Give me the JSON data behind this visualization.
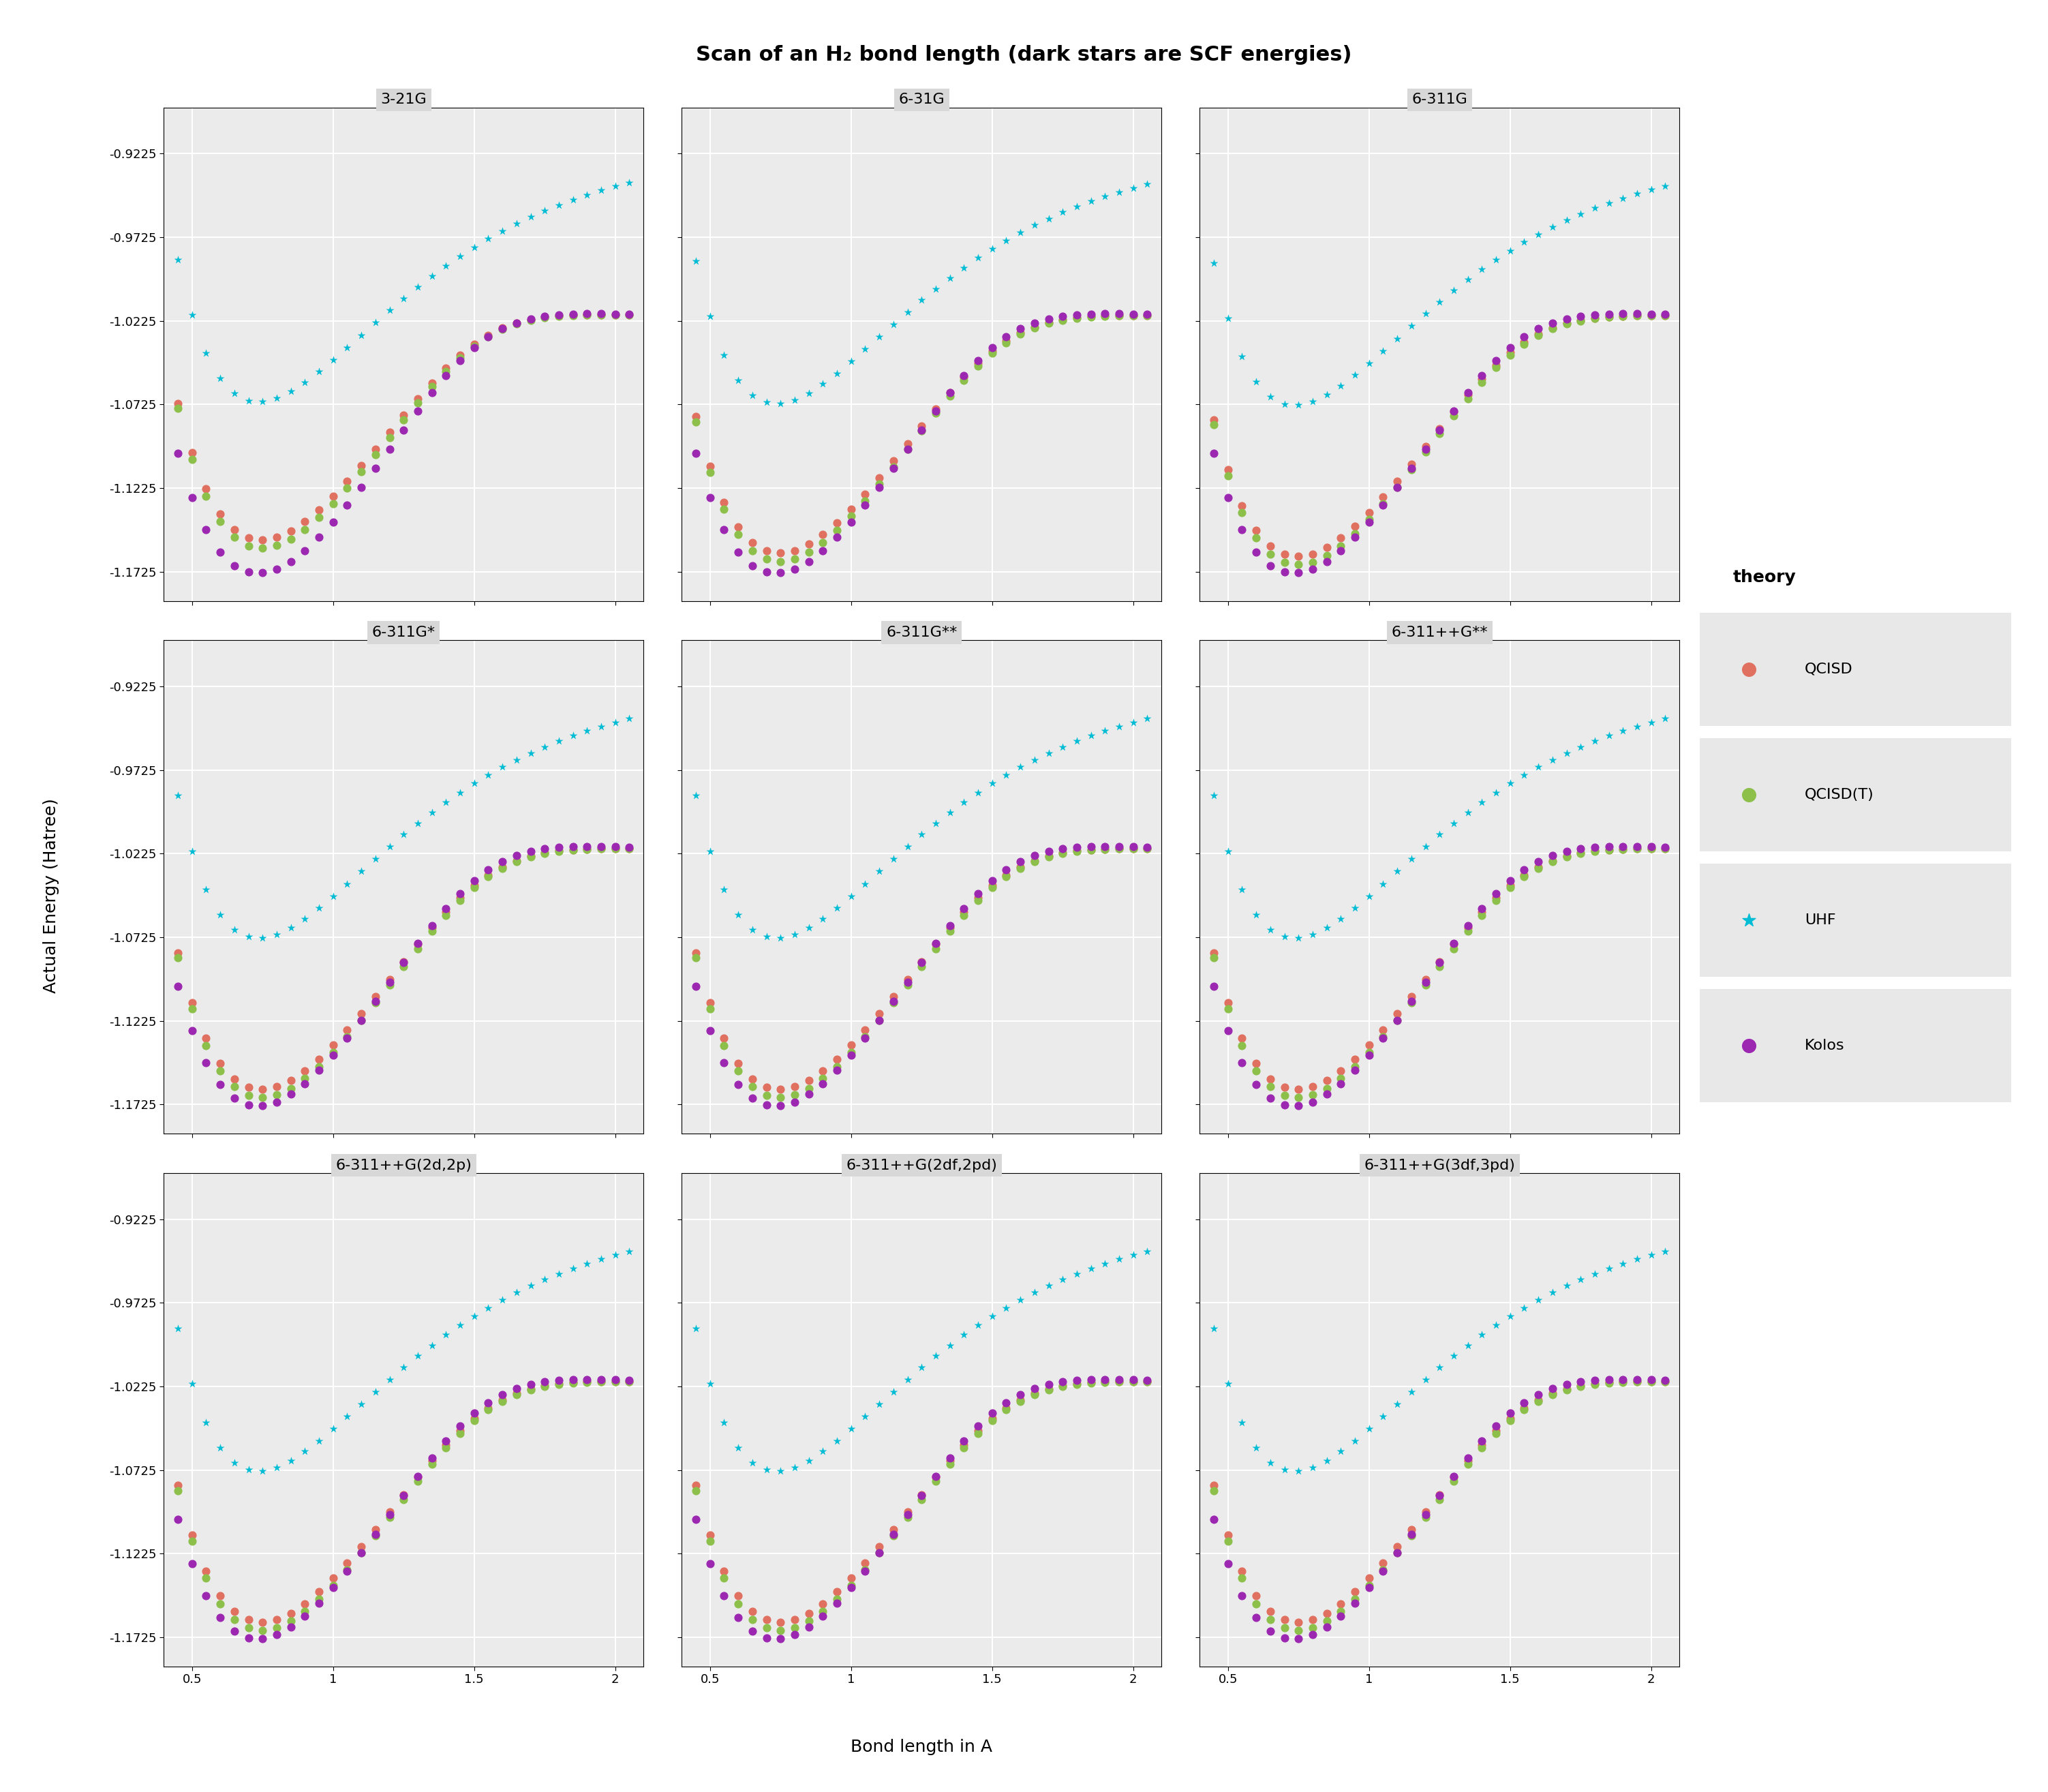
{
  "title": "Scan of an H₂ bond length (dark stars are SCF energies)",
  "xlabel": "Bond length in A",
  "ylabel": "Actual Energy (Hatree)",
  "basis_sets": [
    "3-21G",
    "6-31G",
    "6-311G",
    "6-311G*",
    "6-311G**",
    "6-311++G**",
    "6-311++G(2d,2p)",
    "6-311++G(2df,2pd)",
    "6-311++G(3df,3pd)"
  ],
  "theories": [
    "QCISD",
    "QCISD(T)",
    "UHF",
    "Kolos"
  ],
  "colors": {
    "QCISD": "#E07060",
    "QCISD(T)": "#8DC04A",
    "UHF": "#00BCD4",
    "Kolos": "#9C27B0"
  },
  "ylim": [
    -1.19,
    -0.895
  ],
  "xlim": [
    0.4,
    2.1
  ],
  "yticks": [
    -0.9225,
    -0.9725,
    -1.0225,
    -1.0725,
    -1.1225,
    -1.1725
  ],
  "xticks": [
    0.5,
    1.0,
    1.5,
    2.0
  ],
  "bg_color": "#EBEBEB",
  "fig_bg": "#FFFFFF",
  "grid_color": "#FFFFFF"
}
